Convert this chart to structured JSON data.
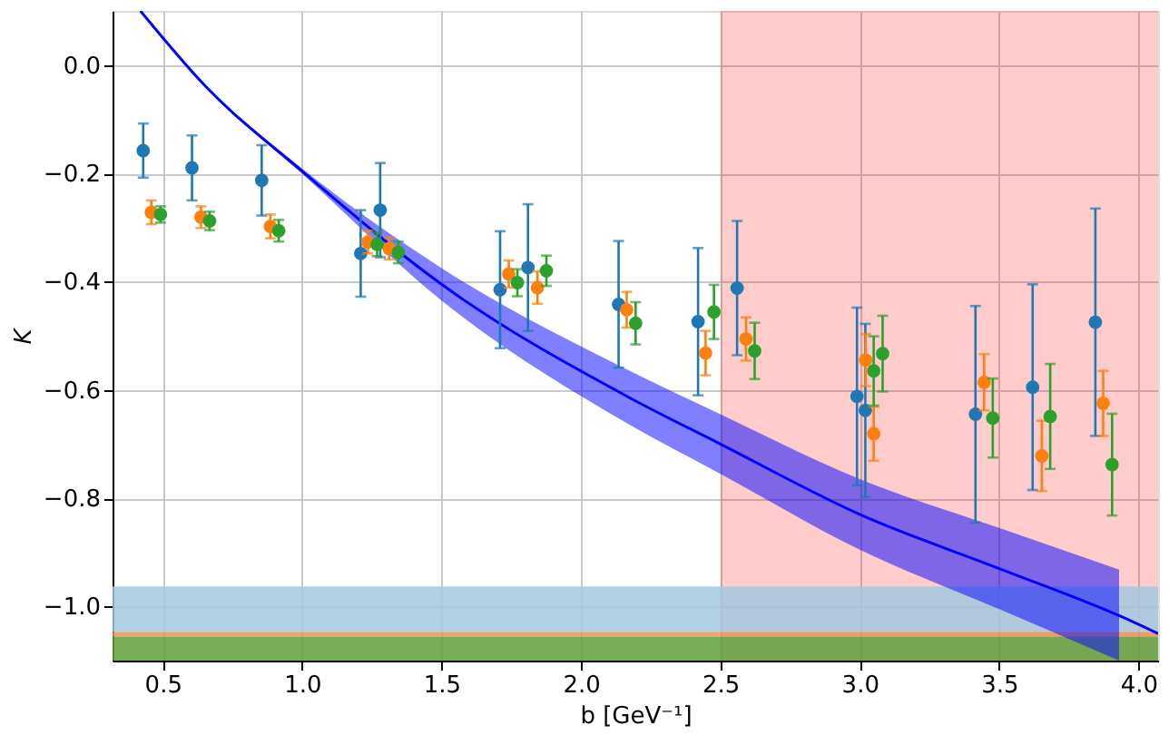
{
  "chart_data": {
    "type": "scatter",
    "xlabel": "b [GeV⁻¹]",
    "ylabel": "K",
    "xlim": [
      0.32,
      4.07
    ],
    "ylim": [
      -1.1,
      0.1
    ],
    "xticks": [
      0.5,
      {
        "value": 1.0,
        "label": "1.0"
      },
      1.5,
      {
        "value": 2.0,
        "label": "2.0"
      },
      2.5,
      {
        "value": 3.0,
        "label": "3.0"
      },
      3.5,
      {
        "value": 4.0,
        "label": "4.0"
      }
    ],
    "yticks": [
      {
        "value": 0,
        "label": "0.0"
      },
      {
        "value": -0.2,
        "label": "−0.2"
      },
      {
        "value": -0.4,
        "label": "−0.4"
      },
      {
        "value": -0.6,
        "label": "−0.6"
      },
      {
        "value": -0.8,
        "label": "−0.8"
      },
      {
        "value": -1.0,
        "label": "−1.0"
      }
    ],
    "grid": true,
    "marker": "circle",
    "bands": [
      {
        "axis": "x",
        "from": 2.5,
        "to": 4.07,
        "color": "#ff0000"
      },
      {
        "axis": "y",
        "from": -1.047,
        "to": -0.963,
        "color": "#a5c8df"
      },
      {
        "axis": "y",
        "from": -1.056,
        "to": -1.047,
        "color": "#e8945a"
      },
      {
        "axis": "y",
        "from": -1.1,
        "to": -1.056,
        "color": "#5f9f3c"
      }
    ],
    "series": [
      {
        "type": "line",
        "color": "#0000ff",
        "line_style": "solid",
        "marker": "none",
        "x": [
          0.42,
          0.655,
          1.0,
          1.5,
          2.18,
          2.5,
          3.0,
          3.5,
          3.93,
          4.07
        ],
        "values": [
          0.1,
          -0.04,
          -0.196,
          -0.405,
          -0.616,
          -0.7,
          -0.83,
          -0.93,
          -1.017,
          -1.05
        ],
        "lower": [
          0.1,
          -0.042,
          -0.201,
          -0.435,
          -0.666,
          -0.755,
          -0.895,
          -1.005,
          -1.1,
          null
        ],
        "upper": [
          0.1,
          -0.038,
          -0.191,
          -0.375,
          -0.566,
          -0.645,
          -0.765,
          -0.855,
          -0.932,
          null
        ]
      },
      {
        "color": "#1f77b4",
        "x": [
          0.43,
          0.605,
          0.855,
          1.21,
          1.28,
          1.71,
          1.81,
          2.135,
          2.42,
          2.56,
          2.99,
          3.02,
          3.415,
          3.62,
          3.845
        ],
        "values": [
          -0.158,
          -0.19,
          -0.213,
          -0.348,
          -0.268,
          -0.415,
          -0.374,
          -0.442,
          -0.474,
          -0.412,
          -0.612,
          -0.638,
          -0.645,
          -0.595,
          -0.475
        ],
        "errors": [
          0.05,
          0.06,
          0.065,
          0.08,
          0.087,
          0.108,
          0.117,
          0.117,
          0.136,
          0.124,
          0.164,
          0.16,
          0.2,
          0.19,
          0.21
        ]
      },
      {
        "color": "#ff7f0e",
        "x": [
          0.459,
          0.637,
          0.886,
          1.236,
          1.312,
          1.741,
          1.844,
          2.164,
          2.447,
          2.592,
          3.021,
          3.05,
          3.446,
          3.653,
          3.873
        ],
        "values": [
          -0.272,
          -0.281,
          -0.298,
          -0.327,
          -0.339,
          -0.386,
          -0.411,
          -0.452,
          -0.532,
          -0.506,
          -0.545,
          -0.681,
          -0.586,
          -0.722,
          -0.625
        ],
        "errors": [
          0.022,
          0.02,
          0.022,
          0.021,
          0.02,
          0.025,
          0.03,
          0.033,
          0.041,
          0.04,
          0.048,
          0.05,
          0.052,
          0.065,
          0.06
        ]
      },
      {
        "color": "#2ca02c",
        "x": [
          0.492,
          0.668,
          0.916,
          1.269,
          1.345,
          1.772,
          1.876,
          2.196,
          2.477,
          2.623,
          3.05,
          3.082,
          3.477,
          3.683,
          3.905
        ],
        "values": [
          -0.276,
          -0.288,
          -0.306,
          -0.331,
          -0.346,
          -0.402,
          -0.38,
          -0.477,
          -0.456,
          -0.528,
          -0.565,
          -0.533,
          -0.652,
          -0.649,
          -0.738
        ],
        "errors": [
          0.015,
          0.017,
          0.02,
          0.022,
          0.02,
          0.025,
          0.028,
          0.039,
          0.05,
          0.052,
          0.064,
          0.07,
          0.073,
          0.097,
          0.094
        ]
      }
    ]
  }
}
